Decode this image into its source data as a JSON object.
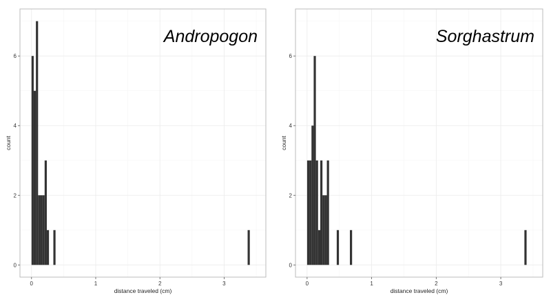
{
  "colors": {
    "bar": "#333333",
    "panel_border": "#bbbbbb",
    "grid_major": "#ebebeb",
    "grid_minor": "#f5f5f5",
    "background": "#ffffff"
  },
  "chart_data": [
    {
      "type": "bar",
      "title": "Andropogon",
      "xlabel": "distance traveled (cm)",
      "ylabel": "count",
      "xlim": [
        -0.18,
        3.65
      ],
      "ylim": [
        -0.35,
        7.35
      ],
      "xticks": [
        0,
        1,
        2,
        3
      ],
      "yticks": [
        0,
        2,
        4,
        6
      ],
      "grid": true,
      "bin_width": 0.034,
      "x": [
        0.017,
        0.051,
        0.085,
        0.119,
        0.153,
        0.187,
        0.221,
        0.255,
        0.357,
        3.383
      ],
      "values": [
        6,
        5,
        7,
        2,
        2,
        2,
        3,
        1,
        1,
        1
      ]
    },
    {
      "type": "bar",
      "title": "Sorghastrum",
      "xlabel": "distance traveled (cm)",
      "ylabel": "count",
      "xlim": [
        -0.18,
        3.65
      ],
      "ylim": [
        -0.35,
        7.35
      ],
      "xticks": [
        0,
        1,
        2,
        3
      ],
      "yticks": [
        0,
        2,
        4,
        6
      ],
      "grid": true,
      "bin_width": 0.034,
      "x": [
        0.017,
        0.051,
        0.085,
        0.119,
        0.153,
        0.187,
        0.221,
        0.255,
        0.289,
        0.323,
        0.476,
        0.68,
        3.383
      ],
      "values": [
        3,
        3,
        4,
        6,
        3,
        1,
        3,
        2,
        2,
        3,
        1,
        1,
        1
      ]
    }
  ]
}
